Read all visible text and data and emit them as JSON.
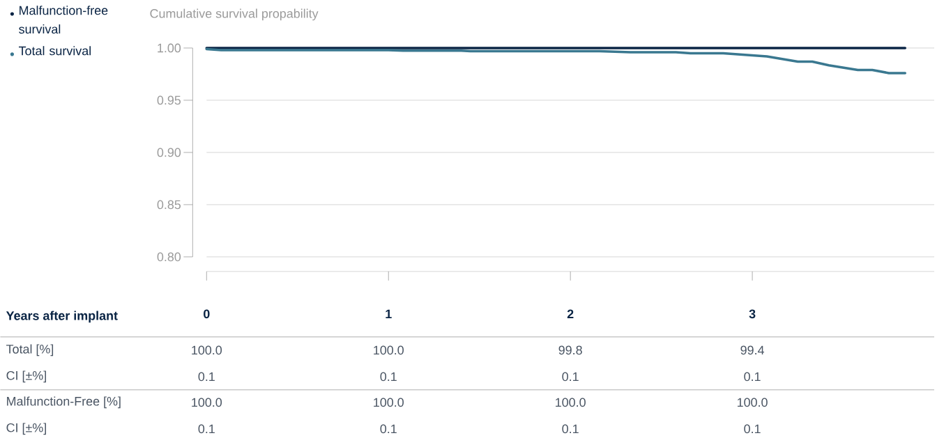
{
  "chart_data": {
    "type": "line",
    "ylabel": "Cumulative survival propability",
    "xlabel": "Years after implant",
    "xlim": [
      0,
      4
    ],
    "xticks": [
      0,
      1,
      2,
      3
    ],
    "ylim": [
      0.786,
      1.0
    ],
    "yticks": [
      {
        "value": 0.8,
        "label": "0.80"
      },
      {
        "value": 0.85,
        "label": "0.85"
      },
      {
        "value": 0.9,
        "label": "0.90"
      },
      {
        "value": 0.95,
        "label": "0.95"
      },
      {
        "value": 1.0,
        "label": "1.00"
      }
    ],
    "grid": "y",
    "legend": "top left",
    "series": [
      {
        "name": "Malfunction-free survival",
        "color": "#0b2545",
        "x": [
          0,
          3.84
        ],
        "values": [
          1.0,
          1.0
        ]
      },
      {
        "name": "Total survival",
        "color": "#3a7890",
        "x": [
          0,
          0.08,
          1.0,
          1.08,
          1.4,
          1.45,
          1.93,
          2.16,
          2.33,
          2.58,
          2.66,
          2.84,
          3.08,
          3.25,
          3.33,
          3.42,
          3.58,
          3.66,
          3.75,
          3.84
        ],
        "values": [
          0.999,
          0.998,
          0.998,
          0.9975,
          0.9975,
          0.997,
          0.997,
          0.997,
          0.996,
          0.996,
          0.995,
          0.995,
          0.992,
          0.987,
          0.987,
          0.9835,
          0.979,
          0.979,
          0.976,
          0.976
        ]
      }
    ],
    "annotations": [
      "Total [%]",
      "100.0",
      "100.0",
      "99.8",
      "99.4",
      "CI [±%]",
      "0.1",
      "0.1",
      "0.1",
      "0.1",
      "Malfunction-Free [%]",
      "100.0",
      "100.0",
      "100.0",
      "100.0",
      "CI [±%]",
      "0.1",
      "0.1",
      "0.1",
      "0.1"
    ]
  }
}
